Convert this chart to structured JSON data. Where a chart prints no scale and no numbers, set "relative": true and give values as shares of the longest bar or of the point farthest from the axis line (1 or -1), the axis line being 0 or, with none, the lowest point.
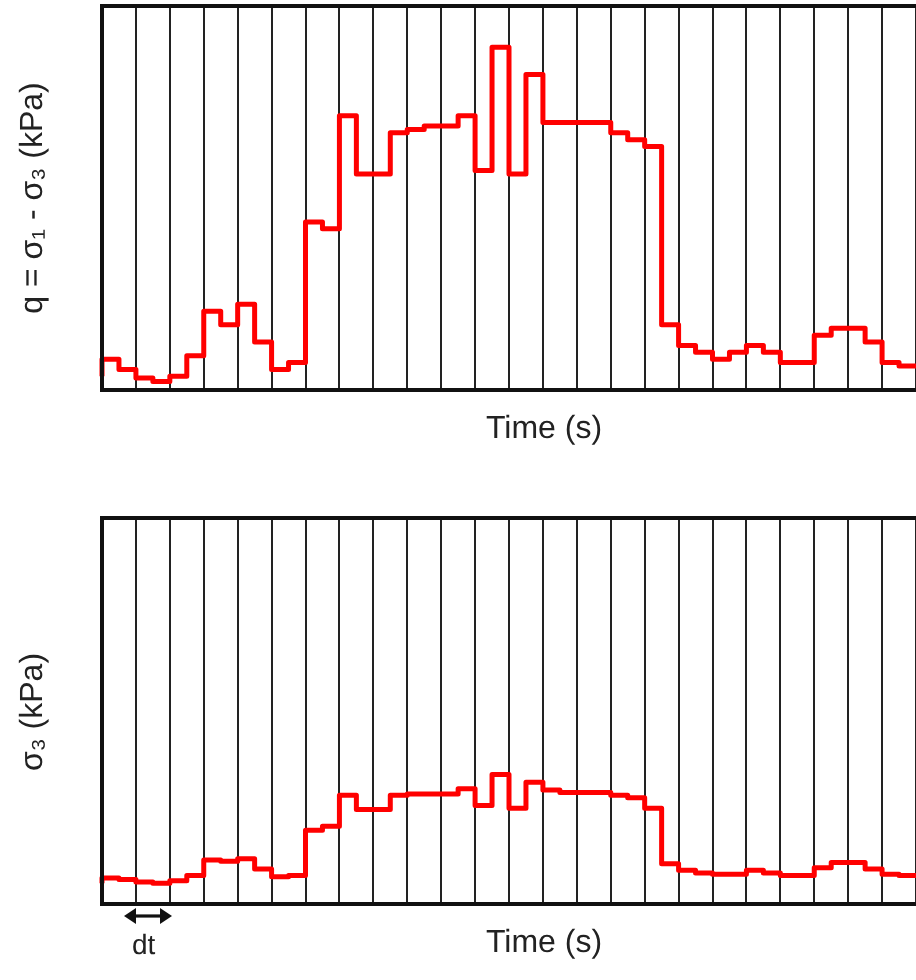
{
  "chart_data": [
    {
      "type": "step",
      "xlabel": "Time (s)",
      "ylabel": "q = σ₁ - σ₃ (kPa)",
      "relative": true,
      "grid": "x",
      "tick_labels": false,
      "legend": false,
      "categories": [
        null,
        null,
        null,
        null,
        null,
        null,
        null,
        null,
        null,
        null,
        null,
        null,
        null,
        null,
        null,
        null,
        null,
        null,
        null,
        null,
        null,
        null,
        null,
        null,
        null,
        null,
        null,
        null,
        null,
        null,
        null,
        null,
        null,
        null,
        null,
        null,
        null,
        null,
        null,
        null,
        null,
        null,
        null,
        null,
        null,
        null,
        null,
        null,
        null
      ],
      "series": [
        {
          "color": "#ff0000",
          "values": [
            0.04,
            0.09,
            0.06,
            0.035,
            0.025,
            0.04,
            0.1,
            0.23,
            0.19,
            0.25,
            0.14,
            0.06,
            0.08,
            0.49,
            0.47,
            0.8,
            0.63,
            0.63,
            0.75,
            0.76,
            0.77,
            0.77,
            0.8,
            0.64,
            1,
            0.63,
            0.92,
            0.78,
            0.78,
            0.78,
            0.78,
            0.75,
            0.73,
            0.71,
            0.19,
            0.13,
            0.11,
            0.09,
            0.11,
            0.13,
            0.11,
            0.08,
            0.08,
            0.16,
            0.18,
            0.18,
            0.14,
            0.08,
            0.07
          ]
        }
      ]
    },
    {
      "type": "step",
      "xlabel": "Time (s)",
      "ylabel": "σ₃ (kPa)",
      "relative": true,
      "grid": "x",
      "tick_labels": false,
      "legend": false,
      "annotations": [
        "dt"
      ],
      "categories": [
        null,
        null,
        null,
        null,
        null,
        null,
        null,
        null,
        null,
        null,
        null,
        null,
        null,
        null,
        null,
        null,
        null,
        null,
        null,
        null,
        null,
        null,
        null,
        null,
        null,
        null,
        null,
        null,
        null,
        null,
        null,
        null,
        null,
        null,
        null,
        null,
        null,
        null,
        null,
        null,
        null,
        null,
        null,
        null,
        null,
        null,
        null,
        null,
        null
      ],
      "series": [
        {
          "color": "#ff0000",
          "values": [
            0.16,
            0.2,
            0.19,
            0.17,
            0.16,
            0.18,
            0.22,
            0.34,
            0.33,
            0.35,
            0.27,
            0.21,
            0.22,
            0.57,
            0.6,
            0.84,
            0.73,
            0.73,
            0.84,
            0.85,
            0.85,
            0.85,
            0.89,
            0.76,
            1,
            0.74,
            0.94,
            0.88,
            0.86,
            0.86,
            0.86,
            0.84,
            0.82,
            0.74,
            0.31,
            0.26,
            0.24,
            0.23,
            0.23,
            0.26,
            0.24,
            0.22,
            0.22,
            0.28,
            0.32,
            0.32,
            0.27,
            0.23,
            0.22
          ]
        }
      ]
    }
  ]
}
